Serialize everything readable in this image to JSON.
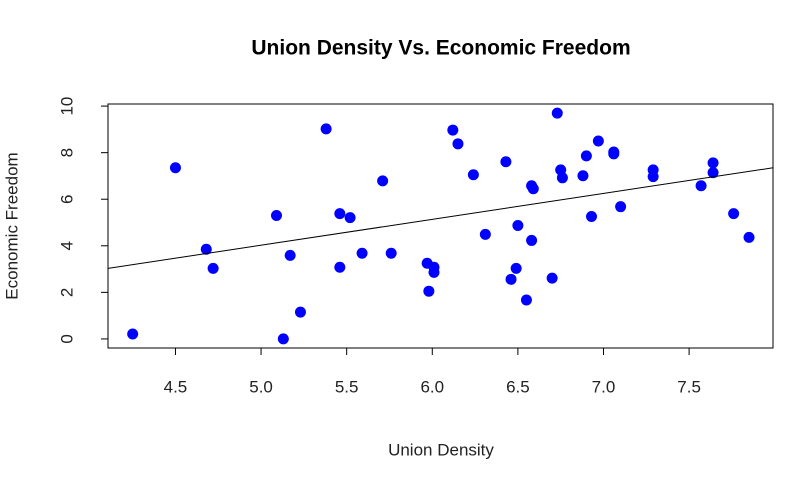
{
  "chart_data": {
    "type": "scatter",
    "title": "Union Density Vs. Economic Freedom",
    "x_label": "Union Density",
    "y_label": "Economic Freedom",
    "x": [
      4.25,
      4.5,
      4.68,
      4.72,
      5.09,
      5.13,
      5.17,
      5.23,
      5.38,
      5.46,
      5.46,
      5.52,
      5.59,
      5.71,
      5.76,
      5.97,
      5.98,
      6.01,
      6.01,
      6.12,
      6.15,
      6.24,
      6.31,
      6.43,
      6.46,
      6.5,
      6.49,
      6.55,
      6.58,
      6.59,
      6.58,
      6.7,
      6.73,
      6.75,
      6.76,
      6.88,
      6.9,
      6.93,
      6.97,
      7.06,
      7.06,
      7.1,
      7.29,
      7.29,
      7.57,
      7.64,
      7.64,
      7.76,
      7.85
    ],
    "values": [
      0.21,
      7.35,
      3.85,
      3.03,
      5.3,
      0,
      3.59,
      1.15,
      9.02,
      3.08,
      5.38,
      5.21,
      3.68,
      6.79,
      3.68,
      3.25,
      2.05,
      3.08,
      2.86,
      8.97,
      8.38,
      7.05,
      4.49,
      7.61,
      2.56,
      4.87,
      3.03,
      1.67,
      6.58,
      6.45,
      4.23,
      2.61,
      9.7,
      7.26,
      6.92,
      7.01,
      7.86,
      5.26,
      8.5,
      7.95,
      8.03,
      5.68,
      7.26,
      6.97,
      6.58,
      7.14,
      7.56,
      5.38,
      4.36
    ],
    "color": "#0000ff",
    "fit_line": {
      "x": [
        4.106,
        7.99
      ],
      "y": [
        3.03,
        7.35
      ],
      "color": "#000000"
    },
    "xlim": [
      4.106,
      7.99
    ],
    "ylim": [
      -0.39,
      10.09
    ],
    "xticks": [
      4.5,
      {
        "value": 5,
        "label": "5.0"
      },
      5.5,
      {
        "value": 6,
        "label": "6.0"
      },
      6.5,
      {
        "value": 7,
        "label": "7.0"
      },
      7.5
    ],
    "yticks": [
      0,
      2,
      4,
      6,
      8,
      10
    ]
  }
}
